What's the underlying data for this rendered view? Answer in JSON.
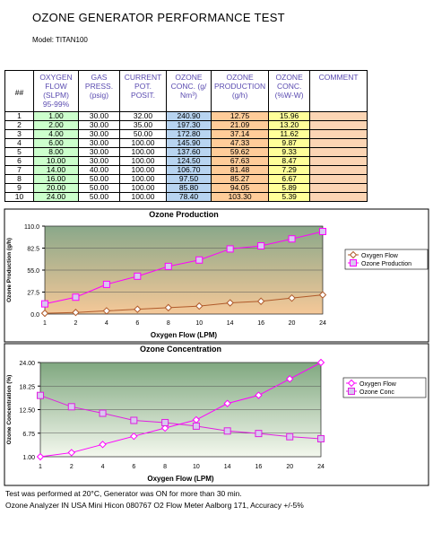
{
  "header": {
    "title": "OZONE GENERATOR PERFORMANCE TEST",
    "model_label": "Model:",
    "model": "TITAN100"
  },
  "table": {
    "headers": [
      "##",
      "OXYGEN FLOW (SLPM) 95-99%",
      "GAS PRESS. (psig)",
      "CURRENT POT. POSIT.",
      "OZONE CONC. (g/ Nm³)",
      "OZONE PRODUCTION (g/h)",
      "OZONE CONC. (%W-W)",
      "COMMENT"
    ],
    "rows": [
      [
        "1",
        "1.00",
        "30.00",
        "32.00",
        "240.90",
        "12.75",
        "15.96"
      ],
      [
        "2",
        "2.00",
        "30.00",
        "35.00",
        "197.30",
        "21.09",
        "13.20"
      ],
      [
        "3",
        "4.00",
        "30.00",
        "50.00",
        "172.80",
        "37.14",
        "11.62"
      ],
      [
        "4",
        "6.00",
        "30.00",
        "100.00",
        "145.90",
        "47.33",
        "9.87"
      ],
      [
        "5",
        "8.00",
        "30.00",
        "100.00",
        "137.60",
        "59.62",
        "9.33"
      ],
      [
        "6",
        "10.00",
        "30.00",
        "100.00",
        "124.50",
        "67.63",
        "8.47"
      ],
      [
        "7",
        "14.00",
        "40.00",
        "100.00",
        "106.70",
        "81.48",
        "7.29"
      ],
      [
        "8",
        "16.00",
        "50.00",
        "100.00",
        "97.50",
        "85.27",
        "6.67"
      ],
      [
        "9",
        "20.00",
        "50.00",
        "100.00",
        "85.80",
        "94.05",
        "5.89"
      ],
      [
        "10",
        "24.00",
        "50.00",
        "100.00",
        "78.40",
        "103.30",
        "5.39"
      ]
    ]
  },
  "chart_data": [
    {
      "type": "line",
      "title": "Ozone Production",
      "x_label": "Oxygen Flow (LPM)",
      "y_label": "Ozone Production (g/h)",
      "categories": [
        "1",
        "2",
        "4",
        "6",
        "8",
        "10",
        "14",
        "16",
        "20",
        "24"
      ],
      "series": [
        {
          "name": "Oxygen Flow",
          "color": "#b05a2a",
          "marker": "diamond",
          "values": [
            1,
            2,
            4,
            6,
            8,
            10,
            14,
            16,
            20,
            24
          ]
        },
        {
          "name": "Ozone Production",
          "color": "#ff00ff",
          "marker": "square",
          "values": [
            12.75,
            21.09,
            37.14,
            47.33,
            59.62,
            67.63,
            81.48,
            85.27,
            94.05,
            103.3
          ]
        }
      ],
      "ylim": [
        0,
        110
      ],
      "yticks": [
        {
          "value": 0,
          "label": "0.0"
        },
        27.5,
        {
          "value": 55,
          "label": "55.0"
        },
        82.5,
        {
          "value": 110,
          "label": "110.0"
        }
      ],
      "grid": true,
      "legend": "right"
    },
    {
      "type": "line",
      "title": "Ozone Concentration",
      "x_label": "Oxygen Flow (LPM)",
      "y_label": "Ozone Concentration (%)",
      "categories": [
        "1",
        "2",
        "4",
        "6",
        "8",
        "10",
        "14",
        "16",
        "20",
        "24"
      ],
      "series": [
        {
          "name": "Oxygen Flow",
          "color": "#ff00ff",
          "marker": "diamond",
          "values": [
            1,
            2,
            4,
            6,
            8,
            10,
            14,
            16,
            20,
            24
          ]
        },
        {
          "name": "Ozone Conc",
          "color": "#e020e0",
          "marker": "square",
          "values": [
            15.96,
            13.2,
            11.62,
            9.87,
            9.33,
            8.47,
            7.29,
            6.67,
            5.89,
            5.39
          ]
        }
      ],
      "ylim": [
        1,
        24
      ],
      "yticks": [
        {
          "value": 1,
          "label": "1.00"
        },
        6.75,
        {
          "value": 12.5,
          "label": "12.50"
        },
        18.25,
        {
          "value": 24,
          "label": "24.00"
        }
      ],
      "grid": true,
      "legend": "right"
    }
  ],
  "footer": [
    "Test was performed at 20°C, Generator was ON for more than 30 min.",
    "Ozone Analyzer IN USA Mini Hicon 080767 O2 Flow Meter Aalborg 171, Accuracy +/-5%"
  ]
}
